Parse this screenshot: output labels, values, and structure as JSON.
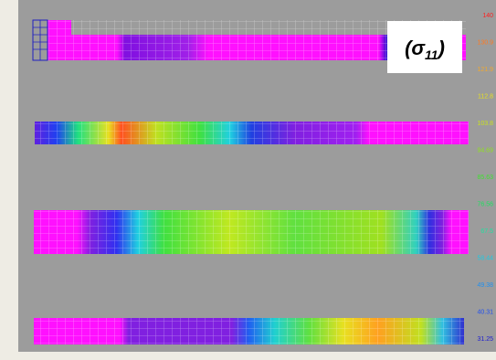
{
  "annotation": {
    "open": "(σ",
    "subscript": "11",
    "close": ")"
  },
  "legend": {
    "labels": [
      "140",
      "130.9",
      "121.9",
      "112.8",
      "103.8",
      "94.69",
      "85.63",
      "76.56",
      "67.5",
      "58.44",
      "49.38",
      "40.31",
      "31.25"
    ],
    "colors": [
      "#ff2020",
      "#ff7a20",
      "#f0a830",
      "#e8e020",
      "#c8e020",
      "#90e020",
      "#40e030",
      "#20e060",
      "#20e0a0",
      "#20c8e0",
      "#2090f0",
      "#2050f0",
      "#2020d0"
    ]
  }
}
